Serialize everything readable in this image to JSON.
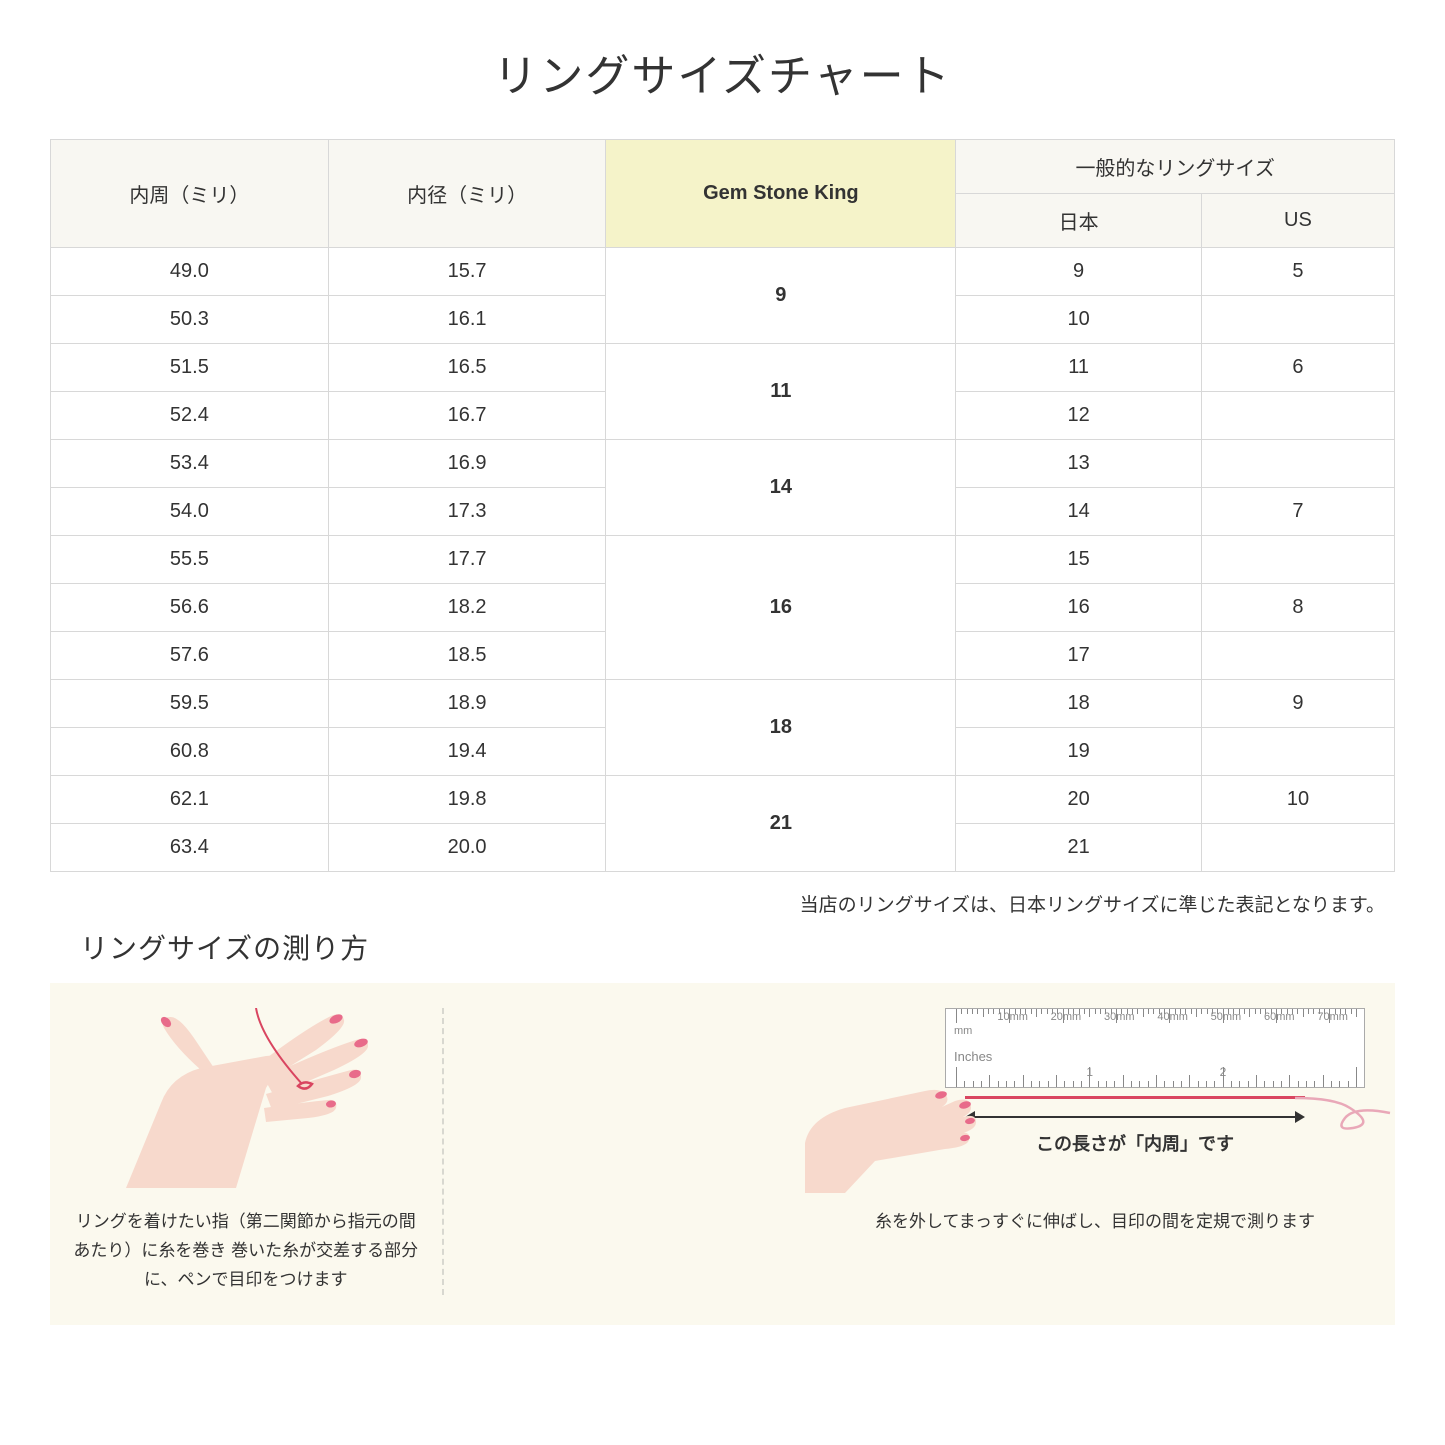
{
  "title": "リングサイズチャート",
  "headers": {
    "circumference": "内周（ミリ）",
    "diameter": "内径（ミリ）",
    "gsk": "Gem Stone King",
    "general": "一般的なリングサイズ",
    "japan": "日本",
    "us": "US"
  },
  "rows": [
    {
      "circ": "49.0",
      "dia": "15.7",
      "jp": "9",
      "us": "5"
    },
    {
      "circ": "50.3",
      "dia": "16.1",
      "jp": "10",
      "us": ""
    },
    {
      "circ": "51.5",
      "dia": "16.5",
      "jp": "11",
      "us": "6"
    },
    {
      "circ": "52.4",
      "dia": "16.7",
      "jp": "12",
      "us": ""
    },
    {
      "circ": "53.4",
      "dia": "16.9",
      "jp": "13",
      "us": ""
    },
    {
      "circ": "54.0",
      "dia": "17.3",
      "jp": "14",
      "us": "7"
    },
    {
      "circ": "55.5",
      "dia": "17.7",
      "jp": "15",
      "us": ""
    },
    {
      "circ": "56.6",
      "dia": "18.2",
      "jp": "16",
      "us": "8"
    },
    {
      "circ": "57.6",
      "dia": "18.5",
      "jp": "17",
      "us": ""
    },
    {
      "circ": "59.5",
      "dia": "18.9",
      "jp": "18",
      "us": "9"
    },
    {
      "circ": "60.8",
      "dia": "19.4",
      "jp": "19",
      "us": ""
    },
    {
      "circ": "62.1",
      "dia": "19.8",
      "jp": "20",
      "us": "10"
    },
    {
      "circ": "63.4",
      "dia": "20.0",
      "jp": "21",
      "us": ""
    }
  ],
  "gsk_groups": [
    {
      "label": "9",
      "span": 2
    },
    {
      "label": "11",
      "span": 2
    },
    {
      "label": "14",
      "span": 2
    },
    {
      "label": "16",
      "span": 3
    },
    {
      "label": "18",
      "span": 2
    },
    {
      "label": "21",
      "span": 2
    }
  ],
  "note": "当店のリングサイズは、日本リングサイズに準じた表記となります。",
  "howto_title": "リングサイズの測り方",
  "howto": {
    "left_caption": "リングを着けたい指（第二関節から指元の間あたり）に糸を巻き\n巻いた糸が交差する部分に、ペンで目印をつけます",
    "right_caption": "糸を外してまっすぐに伸ばし、目印の間を定規で測ります",
    "measure_label": "この長さが「内周」です",
    "ruler_mm_label": "mm",
    "ruler_in_label": "Inches",
    "ruler_mm_marks": [
      "10mm",
      "20mm",
      "30mm",
      "40mm",
      "50mm",
      "60mm",
      "70mm"
    ],
    "ruler_in_marks": [
      "1",
      "2"
    ]
  },
  "colors": {
    "header_bg": "#f8f7f2",
    "gsk_bg": "#f5f3c9",
    "border": "#d8d8d8",
    "howto_bg": "#fbf9ee",
    "skin": "#f7d9cc",
    "nail": "#e86b8a",
    "thread": "#d94560"
  }
}
